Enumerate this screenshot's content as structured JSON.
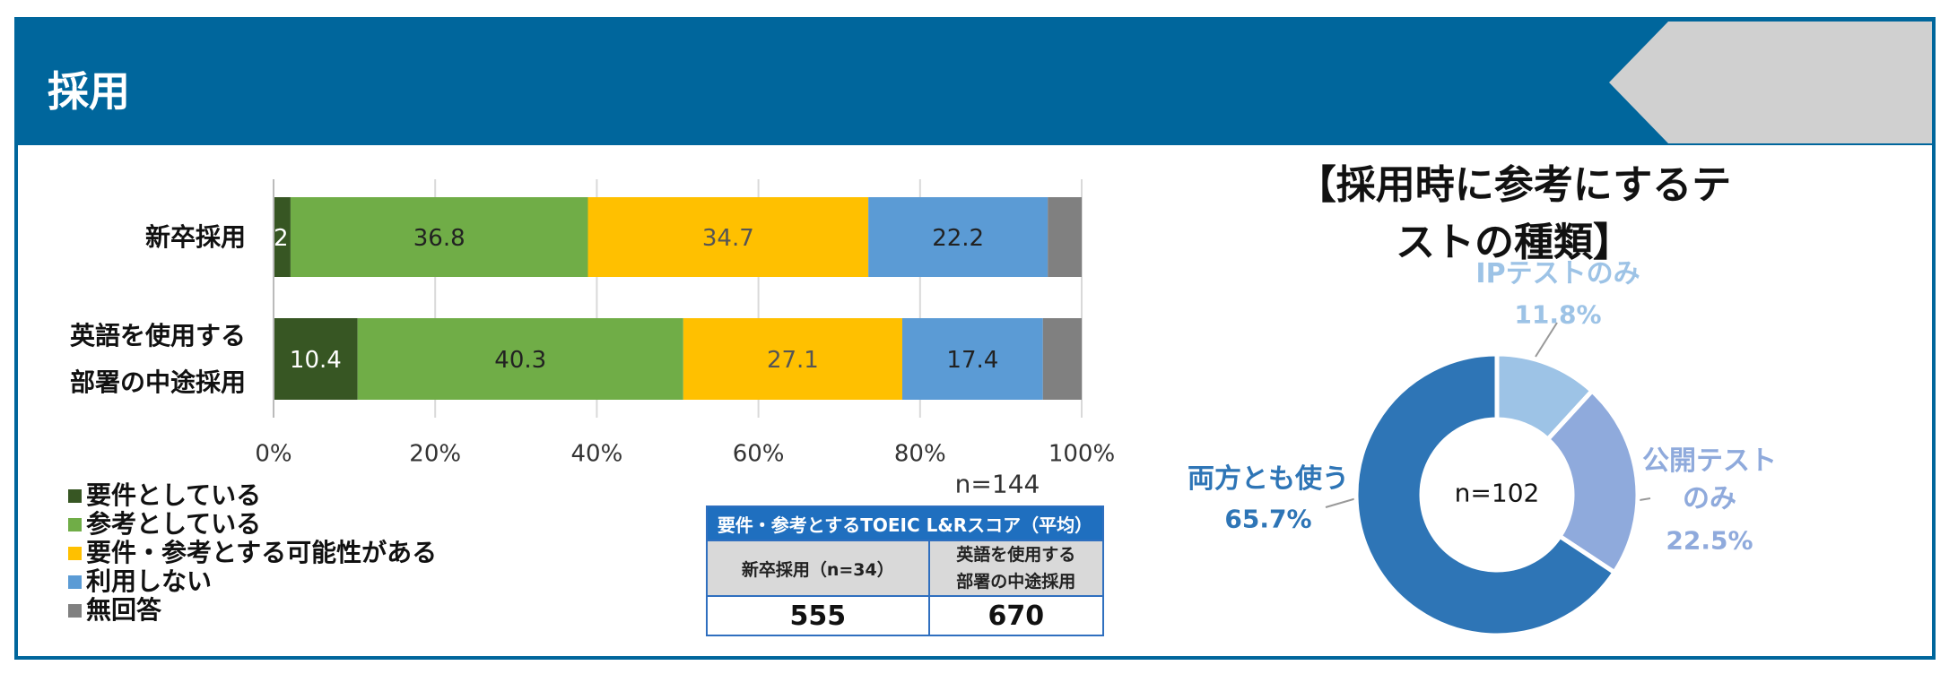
{
  "header": {
    "title": "採用"
  },
  "chart_data": [
    {
      "type": "bar",
      "orientation": "horizontal",
      "stacked": true,
      "categories": [
        "新卒採用",
        "英語を使用する\n部署の中途採用"
      ],
      "series": [
        {
          "name": "要件としている",
          "color": "#375623",
          "label_color": "#ffffff",
          "labels": true,
          "values": [
            2.1,
            10.4
          ]
        },
        {
          "name": "参考としている",
          "color": "#70ad47",
          "label_color": "#222222",
          "labels": true,
          "values": [
            36.8,
            40.3
          ]
        },
        {
          "name": "要件・参考とする可能性がある",
          "color": "#ffc000",
          "label_color": "#555555",
          "labels": true,
          "values": [
            34.7,
            27.1
          ]
        },
        {
          "name": "利用しない",
          "color": "#5b9bd5",
          "label_color": "#222222",
          "labels": true,
          "values": [
            22.2,
            17.4
          ]
        },
        {
          "name": "無回答",
          "color": "#808080",
          "label_color": "#ffffff",
          "labels": false,
          "values": [
            4.2,
            4.8
          ]
        }
      ],
      "xlim": [
        0,
        100
      ],
      "xticks": [
        {
          "value": 0,
          "label": "0%"
        },
        {
          "value": 20,
          "label": "20%"
        },
        {
          "value": 40,
          "label": "40%"
        },
        {
          "value": 60,
          "label": "60%"
        },
        {
          "value": 80,
          "label": "80%"
        },
        {
          "value": 100,
          "label": "100%"
        }
      ],
      "grid": true,
      "annotation": "n=144"
    },
    {
      "type": "pie",
      "title": "【採用時に参考にするテストの種類】",
      "categories": [
        "IPテストのみ",
        "公開テスト\nのみ",
        "両方とも使う"
      ],
      "values": [
        11.8,
        22.5,
        65.7
      ],
      "value_labels": [
        "11.8%",
        "22.5%",
        "65.7%"
      ],
      "colors": [
        "#9dc3e6",
        "#8faadc",
        "#2e75b6"
      ],
      "center_label": "n=102"
    }
  ],
  "table": {
    "title": "要件・参考とするTOEIC L&Rスコア（平均）",
    "header": [
      "新卒採用（n=34）",
      "英語を使用する\n部署の中途採用"
    ],
    "rows": [
      [
        "555",
        "670"
      ]
    ]
  }
}
